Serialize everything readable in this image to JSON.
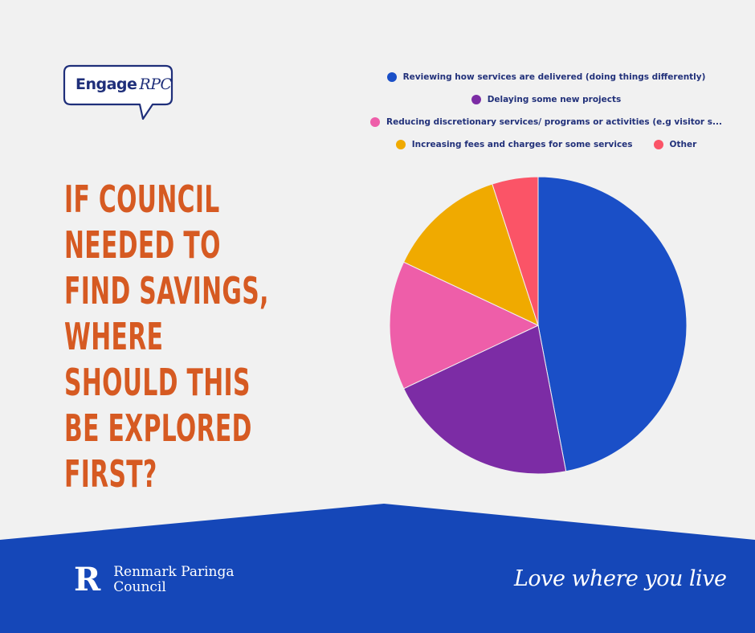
{
  "logo": {
    "text_a": "Engage",
    "text_b": "RPC"
  },
  "question": "IF COUNCIL NEEDED TO FIND SAVINGS, WHERE SHOULD THIS BE EXPLORED FIRST?",
  "colors": {
    "background": "#f1f1f1",
    "accent_orange": "#d65a22",
    "footer_blue": "#1547b8",
    "navy": "#22317a"
  },
  "chart_data": {
    "type": "pie",
    "legend_placement": "top",
    "categories": [
      "Reviewing how services are delivered (doing things differently)",
      "Delaying some new projects",
      "Reducing discretionary services/ programs or activities (e.g visitor s...",
      "Increasing fees and charges for some services",
      "Other"
    ],
    "values": [
      47,
      21,
      14,
      13,
      5
    ],
    "colors": [
      "#1a4fc7",
      "#7c2ca5",
      "#ee5ea9",
      "#f0aa00",
      "#fb5467"
    ],
    "start_angle_deg": 0,
    "direction": "clockwise"
  },
  "footer": {
    "brand_mark": "R",
    "brand_name": "Renmark Paringa Council",
    "tagline": "Love where you live"
  }
}
